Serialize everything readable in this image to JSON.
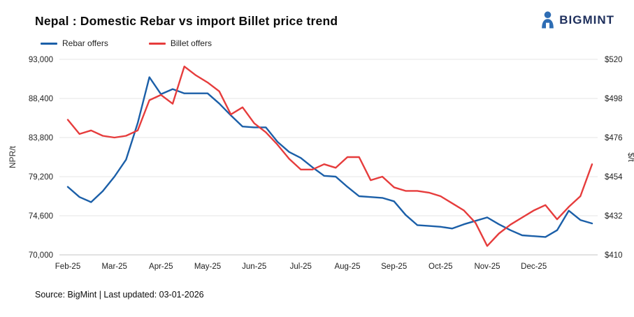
{
  "header": {
    "title": "Nepal : Domestic Rebar vs import Billet price trend",
    "brand": "BIGMINT"
  },
  "icons": {
    "brand_mark": "bigmint-person-mark-icon"
  },
  "colors": {
    "brand_blue": "#2e6db4",
    "brand_navy": "#1e2f5c",
    "rebar_blue": "#1b5fa8",
    "billet_red": "#e63c3c"
  },
  "footer": {
    "text": "Source: BigMint | Last updated: 03-01-2026"
  },
  "chart_data": {
    "type": "line",
    "title": "Nepal : Domestic Rebar vs import Billet price trend",
    "legend_position": "top-left",
    "grid": "horizontal",
    "x_tick_labels": [
      "Feb-25",
      "Mar-25",
      "Apr-25",
      "May-25",
      "Jun-25",
      "Jul-25",
      "Aug-25",
      "Sep-25",
      "Oct-25",
      "Nov-25",
      "Dec-25"
    ],
    "points_per_month": 4,
    "left_axis": {
      "label": "NPR/t",
      "min": 70000,
      "max": 93000,
      "ticks": [
        70000,
        74600,
        79200,
        83800,
        88400,
        93000
      ],
      "tick_labels": [
        "70,000",
        "74,600",
        "79,200",
        "83,800",
        "88,400",
        "93,000"
      ]
    },
    "right_axis": {
      "label": "$/t",
      "min": 410,
      "max": 520,
      "ticks": [
        410,
        432,
        454,
        476,
        498,
        520
      ],
      "tick_labels": [
        "$410",
        "$432",
        "$454",
        "$476",
        "$498",
        "$520"
      ]
    },
    "series": [
      {
        "name": "Rebar offers",
        "axis": "left",
        "unit": "NPR/t",
        "color": "#1b5fa8",
        "values": [
          78000,
          76800,
          76200,
          77500,
          79200,
          81200,
          85500,
          90900,
          88900,
          89500,
          89000,
          89000,
          89000,
          87800,
          86400,
          85100,
          85000,
          85000,
          83300,
          82100,
          81400,
          80300,
          79300,
          79200,
          78000,
          76900,
          76800,
          76700,
          76300,
          74700,
          73500,
          73400,
          73300,
          73100,
          73600,
          74000,
          74400,
          73600,
          72900,
          72300,
          72200,
          72100,
          72900,
          75200,
          74100,
          73700
        ]
      },
      {
        "name": "Billet offers",
        "axis": "right",
        "unit": "$/t",
        "color": "#e63c3c",
        "values": [
          486,
          478,
          480,
          477,
          476,
          477,
          480,
          497,
          500,
          495,
          516,
          511,
          507,
          502,
          489,
          493,
          484,
          479,
          472,
          464,
          458,
          458,
          461,
          459,
          465,
          465,
          452,
          454,
          448,
          446,
          446,
          445,
          443,
          439,
          435,
          428,
          415,
          422,
          427,
          431,
          435,
          438,
          430,
          437,
          443,
          461
        ]
      }
    ]
  }
}
